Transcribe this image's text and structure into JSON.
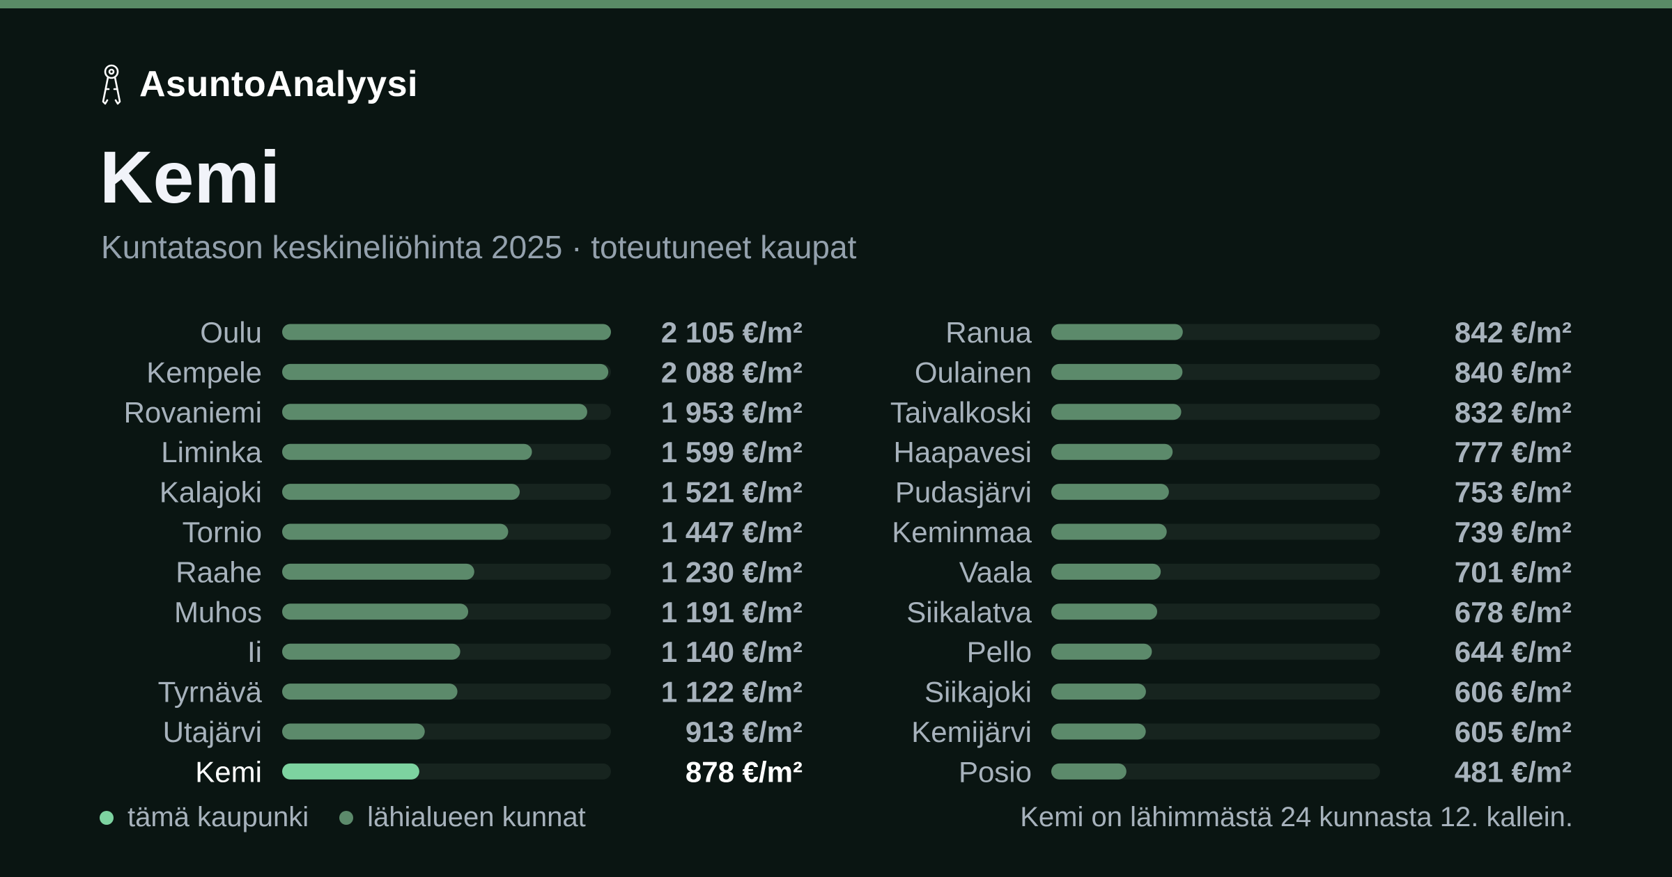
{
  "brand": {
    "name": "AsuntoAnalyysi",
    "icon": "keys-icon"
  },
  "header": {
    "title": "Kemi",
    "subtitle": "Kuntatason keskineliöhinta 2025 · toteutuneet kaupat"
  },
  "colors": {
    "accent": "#5a8b66",
    "highlight_bar": "#7dd3a0",
    "bar": "#5c8a6b",
    "track": "#17241f",
    "background": "#0a1512"
  },
  "chart_data": {
    "type": "bar",
    "orientation": "horizontal",
    "unit": "€/m²",
    "highlight": "Kemi",
    "xlim": [
      0,
      2105
    ],
    "columns": [
      {
        "categories": [
          "Oulu",
          "Kempele",
          "Rovaniemi",
          "Liminka",
          "Kalajoki",
          "Tornio",
          "Raahe",
          "Muhos",
          "Ii",
          "Tyrnävä",
          "Utajärvi",
          "Kemi"
        ],
        "values": [
          2105,
          2088,
          1953,
          1599,
          1521,
          1447,
          1230,
          1191,
          1140,
          1122,
          913,
          878
        ],
        "value_labels": [
          "2 105 €/m²",
          "2 088 €/m²",
          "1 953 €/m²",
          "1 599 €/m²",
          "1 521 €/m²",
          "1 447 €/m²",
          "1 230 €/m²",
          "1 191 €/m²",
          "1 140 €/m²",
          "1 122 €/m²",
          "913 €/m²",
          "878 €/m²"
        ]
      },
      {
        "categories": [
          "Ranua",
          "Oulainen",
          "Taivalkoski",
          "Haapavesi",
          "Pudasjärvi",
          "Keminmaa",
          "Vaala",
          "Siikalatva",
          "Pello",
          "Siikajoki",
          "Kemijärvi",
          "Posio"
        ],
        "values": [
          842,
          840,
          832,
          777,
          753,
          739,
          701,
          678,
          644,
          606,
          605,
          481
        ],
        "value_labels": [
          "842 €/m²",
          "840 €/m²",
          "832 €/m²",
          "777 €/m²",
          "753 €/m²",
          "739 €/m²",
          "701 €/m²",
          "678 €/m²",
          "644 €/m²",
          "606 €/m²",
          "605 €/m²",
          "481 €/m²"
        ]
      }
    ],
    "legend": [
      {
        "label": "tämä kaupunki",
        "color": "#7dd3a0"
      },
      {
        "label": "lähialueen kunnat",
        "color": "#5c8a6b"
      }
    ],
    "legend_position": "bottom-left",
    "note": "Kemi on lähimmästä 24 kunnasta 12. kallein."
  }
}
